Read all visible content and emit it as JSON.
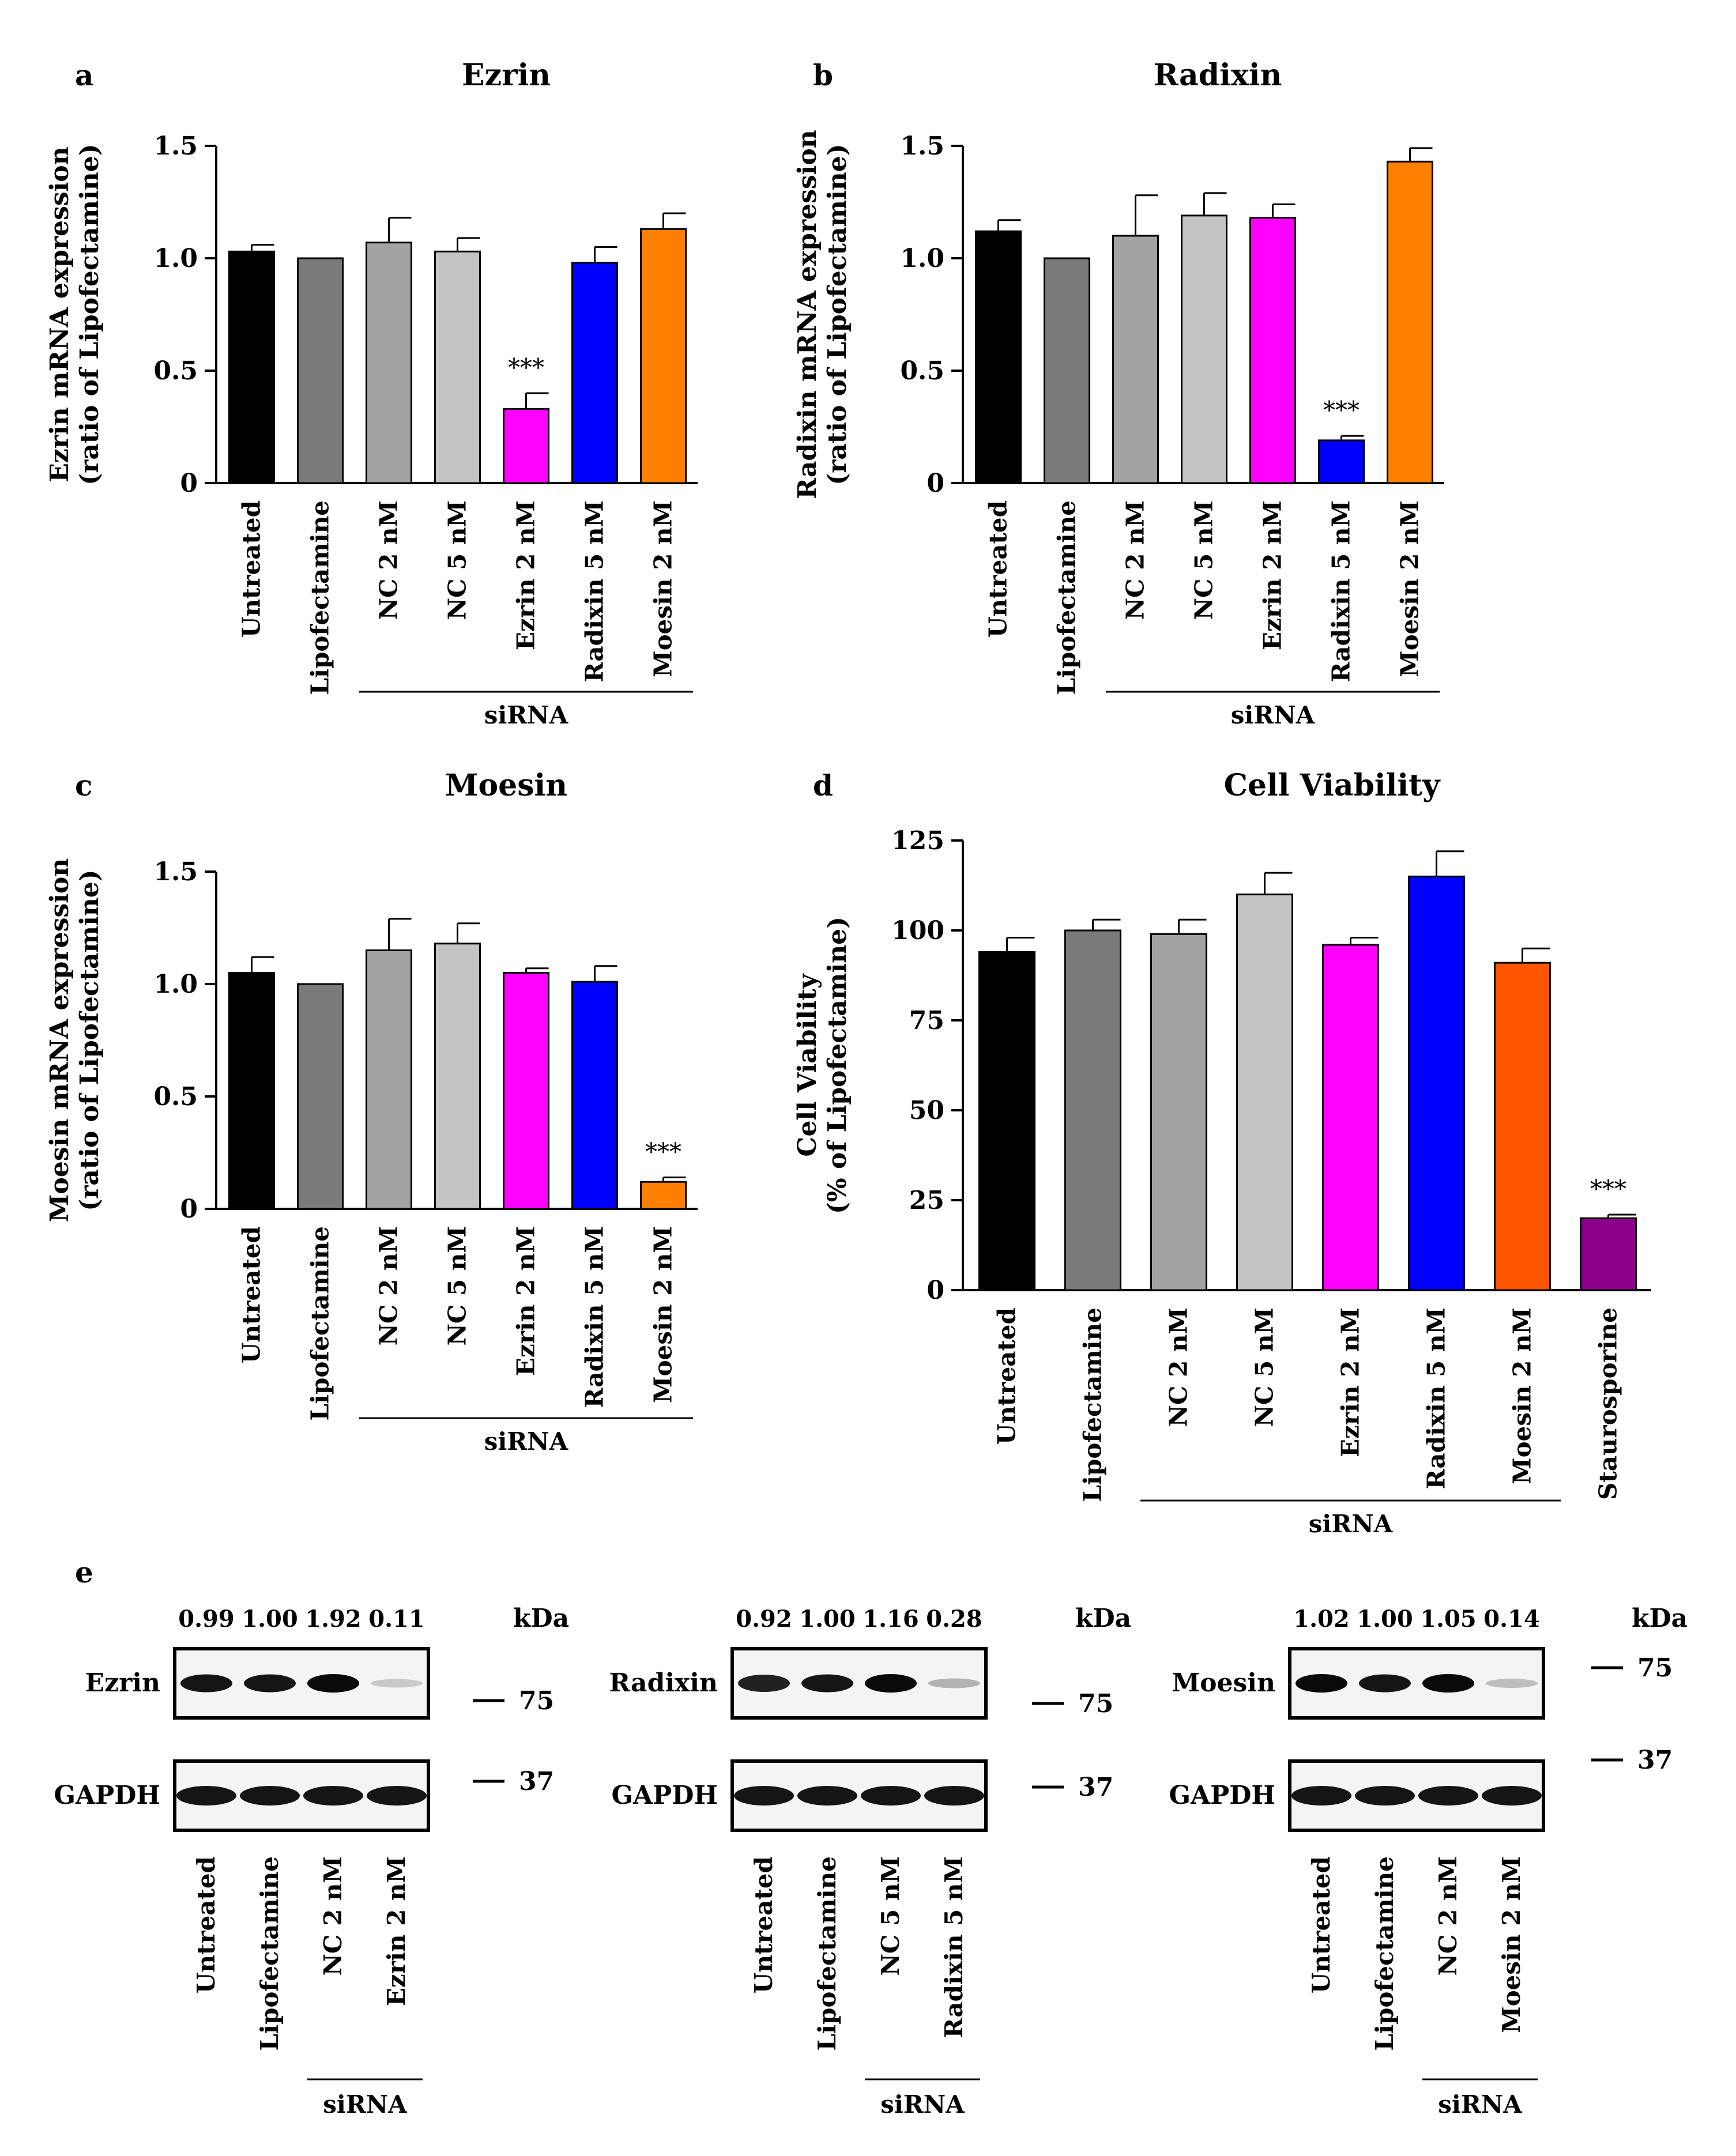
{
  "chart_data": [
    {
      "panel": "a",
      "type": "bar",
      "title": "Ezrin",
      "ylabel": [
        "Ezrin mRNA expression",
        "(ratio of Lipofectamine)"
      ],
      "ylim": [
        0,
        1.5
      ],
      "yticks": [
        0,
        0.5,
        1.0,
        1.5
      ],
      "ytick_labels": [
        "0",
        "0.5",
        "1.0",
        "1.5"
      ],
      "categories": [
        "Untreated",
        "Lipofectamine",
        "NC 2 nM",
        "NC 5 nM",
        "Ezrin 2 nM",
        "Radixin 5 nM",
        "Moesin 2 nM"
      ],
      "values": [
        1.03,
        1.0,
        1.07,
        1.03,
        0.33,
        0.98,
        1.13
      ],
      "errors": [
        0.03,
        0.0,
        0.11,
        0.06,
        0.07,
        0.07,
        0.07
      ],
      "colors": [
        "#000000",
        "#7a7a7a",
        "#a3a3a3",
        "#c4c4c4",
        "#ff00ff",
        "#0000ff",
        "#ff8000"
      ],
      "significance": [
        {
          "index": 4,
          "label": "***"
        }
      ],
      "group": {
        "label": "siRNA",
        "from": 2,
        "to": 6
      }
    },
    {
      "panel": "b",
      "type": "bar",
      "title": "Radixin",
      "ylabel": [
        "Radixin mRNA expression",
        "(ratio of Lipofectamine)"
      ],
      "ylim": [
        0,
        1.5
      ],
      "yticks": [
        0,
        0.5,
        1.0,
        1.5
      ],
      "ytick_labels": [
        "0",
        "0.5",
        "1.0",
        "1.5"
      ],
      "categories": [
        "Untreated",
        "Lipofectamine",
        "NC 2 nM",
        "NC 5 nM",
        "Ezrin 2 nM",
        "Radixin 5 nM",
        "Moesin 2 nM"
      ],
      "values": [
        1.12,
        1.0,
        1.1,
        1.19,
        1.18,
        0.19,
        1.43
      ],
      "errors": [
        0.05,
        0.0,
        0.18,
        0.1,
        0.06,
        0.02,
        0.06
      ],
      "colors": [
        "#000000",
        "#7a7a7a",
        "#a3a3a3",
        "#c4c4c4",
        "#ff00ff",
        "#0000ff",
        "#ff8000"
      ],
      "significance": [
        {
          "index": 5,
          "label": "***"
        }
      ],
      "group": {
        "label": "siRNA",
        "from": 2,
        "to": 6
      }
    },
    {
      "panel": "c",
      "type": "bar",
      "title": "Moesin",
      "ylabel": [
        "Moesin mRNA expression",
        "(ratio of Lipofectamine)"
      ],
      "ylim": [
        0,
        1.5
      ],
      "yticks": [
        0,
        0.5,
        1.0,
        1.5
      ],
      "ytick_labels": [
        "0",
        "0.5",
        "1.0",
        "1.5"
      ],
      "categories": [
        "Untreated",
        "Lipofectamine",
        "NC 2 nM",
        "NC 5 nM",
        "Ezrin 2 nM",
        "Radixin 5 nM",
        "Moesin 2 nM"
      ],
      "values": [
        1.05,
        1.0,
        1.15,
        1.18,
        1.05,
        1.01,
        0.12
      ],
      "errors": [
        0.07,
        0.0,
        0.14,
        0.09,
        0.02,
        0.07,
        0.02
      ],
      "colors": [
        "#000000",
        "#7a7a7a",
        "#a3a3a3",
        "#c4c4c4",
        "#ff00ff",
        "#0000ff",
        "#ff8000"
      ],
      "significance": [
        {
          "index": 6,
          "label": "***"
        }
      ],
      "group": {
        "label": "siRNA",
        "from": 2,
        "to": 6
      }
    },
    {
      "panel": "d",
      "type": "bar",
      "title": "Cell Viability",
      "ylabel": [
        "Cell Viability",
        "(% of  Lipofectamine)"
      ],
      "ylim": [
        0,
        125
      ],
      "yticks": [
        0,
        25,
        50,
        75,
        100,
        125
      ],
      "ytick_labels": [
        "0",
        "25",
        "50",
        "75",
        "100",
        "125"
      ],
      "categories": [
        "Untreated",
        "Lipofectamine",
        "NC 2 nM",
        "NC 5 nM",
        "Ezrin 2 nM",
        "Radixin 5 nM",
        "Moesin 2 nM",
        "Staurosporine"
      ],
      "values": [
        94,
        100,
        99,
        110,
        96,
        115,
        91,
        20
      ],
      "errors": [
        4,
        3,
        4,
        6,
        2,
        7,
        4,
        1
      ],
      "colors": [
        "#000000",
        "#7a7a7a",
        "#a3a3a3",
        "#c4c4c4",
        "#ff00ff",
        "#0000ff",
        "#ff5500",
        "#8b008b"
      ],
      "significance": [
        {
          "index": 7,
          "label": "***"
        }
      ],
      "group": {
        "label": "siRNA",
        "from": 2,
        "to": 6
      }
    }
  ],
  "western": {
    "panel": "e",
    "kda_label": "kDa",
    "blots": [
      {
        "target": "Ezrin",
        "loading": "GAPDH",
        "ratios": [
          "0.99",
          "1.00",
          "1.92",
          "0.11"
        ],
        "intensities": [
          0.95,
          0.95,
          1.0,
          0.15
        ],
        "lanes": [
          "Untreated",
          "Lipofectamine",
          "NC 2 nM",
          "Ezrin 2 nM"
        ],
        "markers": [
          "75",
          "37"
        ],
        "group_label": "siRNA"
      },
      {
        "target": "Radixin",
        "loading": "GAPDH",
        "ratios": [
          "0.92",
          "1.00",
          "1.16",
          "0.28"
        ],
        "intensities": [
          0.9,
          0.95,
          1.0,
          0.25
        ],
        "lanes": [
          "Untreated",
          "Lipofectamine",
          "NC 5 nM",
          "Radixin 5 nM"
        ],
        "markers": [
          "75",
          "37"
        ],
        "group_label": "siRNA"
      },
      {
        "target": "Moesin",
        "loading": "GAPDH",
        "ratios": [
          "1.02",
          "1.00",
          "1.05",
          "0.14"
        ],
        "intensities": [
          1.0,
          0.95,
          1.0,
          0.2
        ],
        "lanes": [
          "Untreated",
          "Lipofectamine",
          "NC 2 nM",
          "Moesin 2 nM"
        ],
        "markers": [
          "75",
          "37"
        ],
        "group_label": "siRNA"
      }
    ]
  }
}
